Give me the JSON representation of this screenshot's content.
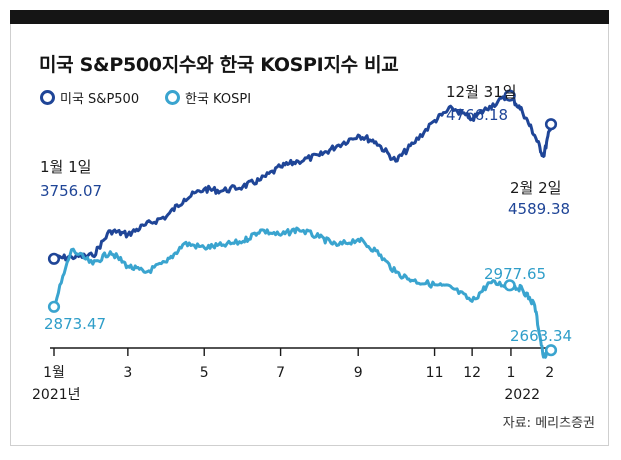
{
  "title": "미국 S&P500지수와 한국 KOSPI지수 비교",
  "source": "자료: 메리츠증권",
  "colors": {
    "sp500": "#1f4597",
    "kospi": "#3aa4cf",
    "text": "#1a1a1a"
  },
  "chart_data": {
    "type": "line",
    "title": "미국 S&P500지수와 한국 KOSPI지수 비교",
    "legend": [
      "미국 S&P500",
      "한국 KOSPI"
    ],
    "legend_position": "top-left",
    "x_ticks": [
      "1월",
      "3",
      "5",
      "7",
      "9",
      "11",
      "12",
      "1",
      "2"
    ],
    "x_year_labels": [
      "2021년",
      "2022"
    ],
    "ylim_sp500": [
      3600,
      4900
    ],
    "ylim_kospi": [
      2500,
      3400
    ],
    "grid": false,
    "series": [
      {
        "name": "미국 S&P500",
        "x": [
          "2021-01-01",
          "2021-01-15",
          "2021-02-01",
          "2021-02-15",
          "2021-03-01",
          "2021-03-15",
          "2021-04-01",
          "2021-04-15",
          "2021-05-01",
          "2021-05-15",
          "2021-06-01",
          "2021-06-15",
          "2021-07-01",
          "2021-07-15",
          "2021-08-01",
          "2021-08-15",
          "2021-09-01",
          "2021-09-15",
          "2021-10-01",
          "2021-10-15",
          "2021-11-01",
          "2021-11-15",
          "2021-12-01",
          "2021-12-15",
          "2021-12-31",
          "2022-01-10",
          "2022-01-20",
          "2022-01-27",
          "2022-02-02"
        ],
        "values": [
          3756.07,
          3768,
          3774,
          3930,
          3906,
          3965,
          4020,
          4125,
          4188,
          4176,
          4204,
          4245,
          4325,
          4360,
          4395,
          4455,
          4522,
          4480,
          4360,
          4470,
          4612,
          4690,
          4620,
          4700,
          4766.18,
          4670,
          4520,
          4390,
          4589.38
        ],
        "annotations": [
          {
            "date_label": "1월 1일",
            "value_label": "3756.07"
          },
          {
            "date_label": "12월 31일",
            "value_label": "4766.18"
          },
          {
            "date_label": "2월 2일",
            "value_label": "4589.38"
          }
        ]
      },
      {
        "name": "한국 KOSPI",
        "x": [
          "2021-01-01",
          "2021-01-15",
          "2021-02-01",
          "2021-02-15",
          "2021-03-01",
          "2021-03-15",
          "2021-04-01",
          "2021-04-15",
          "2021-05-01",
          "2021-05-15",
          "2021-06-01",
          "2021-06-15",
          "2021-07-01",
          "2021-07-15",
          "2021-08-01",
          "2021-08-15",
          "2021-09-01",
          "2021-09-15",
          "2021-10-01",
          "2021-10-15",
          "2021-11-01",
          "2021-11-15",
          "2021-12-01",
          "2021-12-15",
          "2021-12-31",
          "2022-01-10",
          "2022-01-20",
          "2022-01-27",
          "2022-02-02"
        ],
        "values": [
          2873.47,
          3150,
          3080,
          3140,
          3070,
          3040,
          3090,
          3180,
          3160,
          3170,
          3190,
          3245,
          3220,
          3250,
          3210,
          3170,
          3200,
          3145,
          3040,
          3000,
          2980,
          2965,
          2900,
          2990,
          2977.65,
          2960,
          2880,
          2630,
          2663.34
        ],
        "annotations": [
          {
            "value_label": "2873.47"
          },
          {
            "value_label": "2977.65"
          },
          {
            "value_label": "2663.34"
          }
        ]
      }
    ]
  }
}
